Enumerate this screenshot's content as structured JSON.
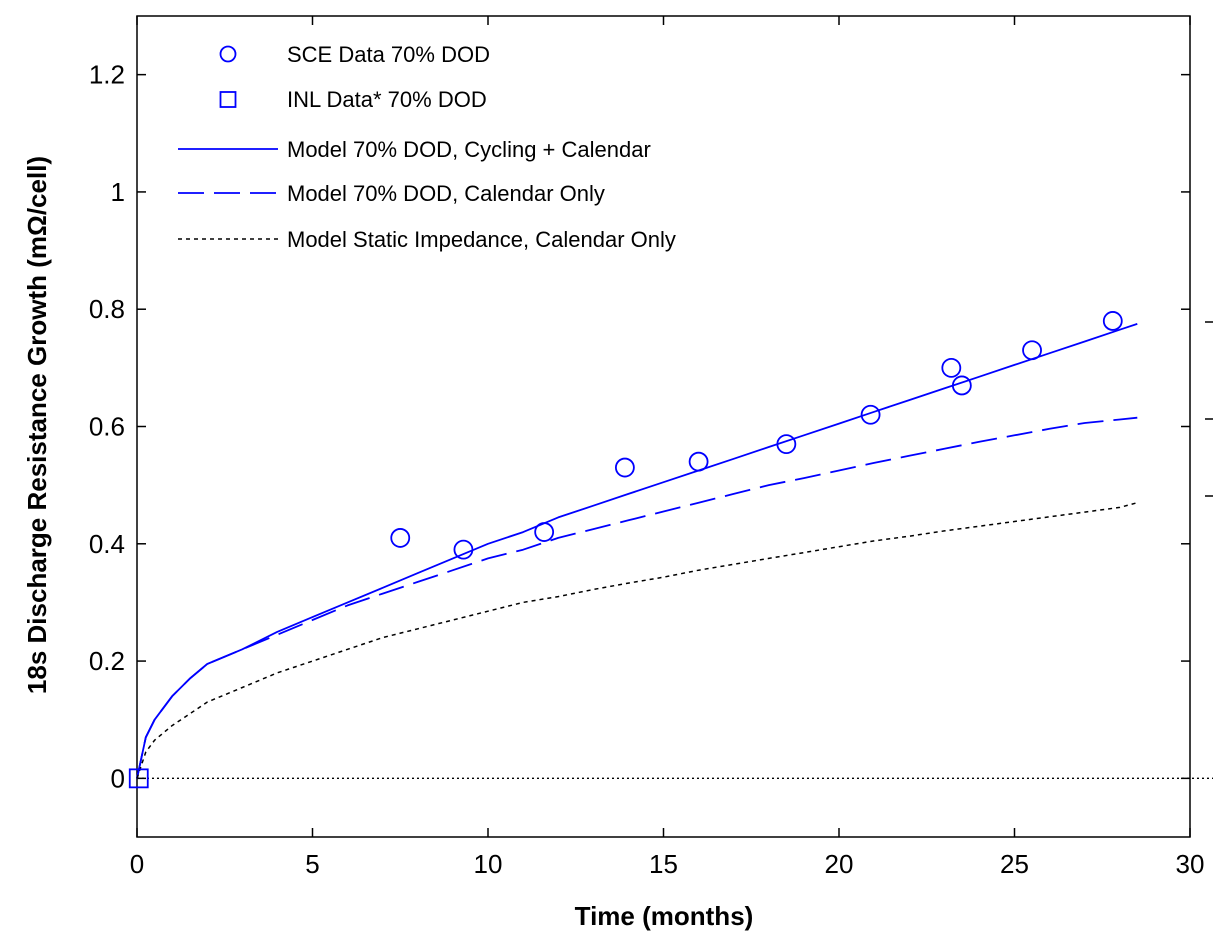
{
  "chart_data": {
    "type": "scatter",
    "title": "",
    "xlabel": "Time (months)",
    "ylabel": "18s Discharge Resistance Growth (mΩ/cell)",
    "xlim": [
      0,
      30
    ],
    "ylim": [
      -0.1,
      1.3
    ],
    "xticks": [
      0,
      5,
      10,
      15,
      20,
      25,
      30
    ],
    "yticks": [
      0,
      0.2,
      0.4,
      0.6,
      0.8,
      1,
      1.2
    ],
    "xtick_labels": [
      "0",
      "5",
      "10",
      "15",
      "20",
      "25",
      "30"
    ],
    "ytick_labels": [
      "0",
      "0.2",
      "0.4",
      "0.6",
      "0.8",
      "1",
      "1.2"
    ],
    "grid": false,
    "legend_position": "top-left",
    "colors": {
      "data": "#0000ff",
      "static": "#000000"
    },
    "series": [
      {
        "name": "SCE Data 70% DOD",
        "kind": "markers-circle",
        "x": [
          7.5,
          9.3,
          11.6,
          13.9,
          16.0,
          18.5,
          20.9,
          23.2,
          23.5,
          25.5,
          27.8
        ],
        "y": [
          0.41,
          0.39,
          0.42,
          0.53,
          0.54,
          0.57,
          0.62,
          0.7,
          0.67,
          0.73,
          0.78
        ]
      },
      {
        "name": "INL Data* 70% DOD",
        "kind": "markers-square",
        "x": [
          0.05
        ],
        "y": [
          0.0
        ]
      },
      {
        "name": "Model 70% DOD, Cycling + Calendar",
        "kind": "line-solid",
        "x": [
          0,
          0.25,
          0.5,
          1,
          1.5,
          2,
          3,
          4,
          5,
          6,
          7,
          8,
          9,
          10,
          11,
          12,
          13,
          14,
          15,
          16,
          17,
          18,
          19,
          20,
          21,
          22,
          23,
          24,
          25,
          26,
          27,
          28,
          28.5
        ],
        "y": [
          0.0,
          0.07,
          0.1,
          0.14,
          0.17,
          0.195,
          0.22,
          0.25,
          0.275,
          0.3,
          0.325,
          0.35,
          0.375,
          0.4,
          0.42,
          0.445,
          0.465,
          0.485,
          0.505,
          0.525,
          0.545,
          0.565,
          0.585,
          0.605,
          0.625,
          0.645,
          0.665,
          0.685,
          0.705,
          0.725,
          0.745,
          0.765,
          0.775
        ]
      },
      {
        "name": "Model 70% DOD, Calendar Only",
        "kind": "line-dashed",
        "x": [
          0,
          0.25,
          0.5,
          1,
          1.5,
          2,
          3,
          4,
          5,
          6,
          7,
          8,
          9,
          10,
          11,
          12,
          13,
          14,
          15,
          16,
          17,
          18,
          19,
          20,
          21,
          22,
          23,
          24,
          25,
          26,
          27,
          28,
          28.5
        ],
        "y": [
          0.0,
          0.07,
          0.1,
          0.14,
          0.17,
          0.195,
          0.22,
          0.245,
          0.27,
          0.295,
          0.315,
          0.335,
          0.355,
          0.375,
          0.39,
          0.41,
          0.425,
          0.44,
          0.455,
          0.47,
          0.485,
          0.5,
          0.512,
          0.525,
          0.538,
          0.55,
          0.562,
          0.574,
          0.585,
          0.596,
          0.606,
          0.612,
          0.615
        ]
      },
      {
        "name": "Model Static Impedance, Calendar Only",
        "kind": "line-dotted",
        "x": [
          0,
          0.25,
          0.5,
          1,
          1.5,
          2,
          3,
          4,
          5,
          6,
          7,
          8,
          9,
          10,
          11,
          12,
          13,
          14,
          15,
          16,
          17,
          18,
          19,
          20,
          21,
          22,
          23,
          24,
          25,
          26,
          27,
          28,
          28.5
        ],
        "y": [
          0.0,
          0.045,
          0.065,
          0.09,
          0.11,
          0.13,
          0.155,
          0.18,
          0.2,
          0.22,
          0.24,
          0.255,
          0.27,
          0.285,
          0.3,
          0.31,
          0.322,
          0.333,
          0.343,
          0.355,
          0.365,
          0.375,
          0.385,
          0.395,
          0.405,
          0.413,
          0.422,
          0.43,
          0.438,
          0.446,
          0.454,
          0.462,
          0.47
        ]
      }
    ],
    "reference_line": {
      "y": 0
    }
  }
}
